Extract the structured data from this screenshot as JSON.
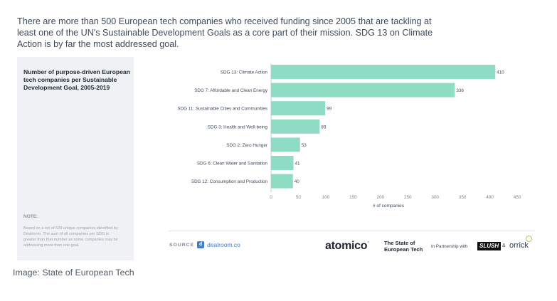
{
  "intro_text": "There are more than 500 European tech companies who received funding since 2005 that are tackling at least one of the UN's Sustainable Development Goals as a core part of their mission. SDG 13 on Climate Action is by far the most addressed goal.",
  "side_title": "Number of purpose-driven European tech companies per Sustainable Development Goal, 2005-2019",
  "note_label": "NOTE:",
  "note_text": "Based on a set of 529 unique companies identified by Dealroom. The sum of all companies per SDG is greater than that number as some companies may be addressing more than one goal.",
  "footer": {
    "source_label": "SOURCE",
    "source_icon": "dealroom-mark",
    "source_mark": "d",
    "source_name": "dealroom.co",
    "atomico": "atomico",
    "atomico_mark": "◦",
    "state_line1": "The State of",
    "state_line2": "European Tech",
    "partnership": "In Partnership with",
    "slush": "SLUSH",
    "amp": "&",
    "orrick": "orrick"
  },
  "caption": "Image: State of European Tech",
  "chart_data": {
    "type": "bar",
    "orientation": "horizontal",
    "categories": [
      "SDG 13: Climate Action",
      "SDG 7: Affordable and Clean Energy",
      "SDG 11: Sustainable Cities and Communities",
      "SDG 3: Health and Well-being",
      "SDG 2: Zero Hunger",
      "SDG 6: Clean Water and Sanitation",
      "SDG 12: Consumption and Production"
    ],
    "values": [
      410,
      336,
      99,
      89,
      53,
      41,
      40
    ],
    "xlabel": "# of companies",
    "ylabel": "",
    "xlim": [
      0,
      450
    ],
    "xticks": [
      0,
      50,
      100,
      150,
      200,
      250,
      300,
      350,
      400,
      450
    ],
    "grid": false,
    "legend": "none",
    "bar_color": "#8fdcc4"
  }
}
